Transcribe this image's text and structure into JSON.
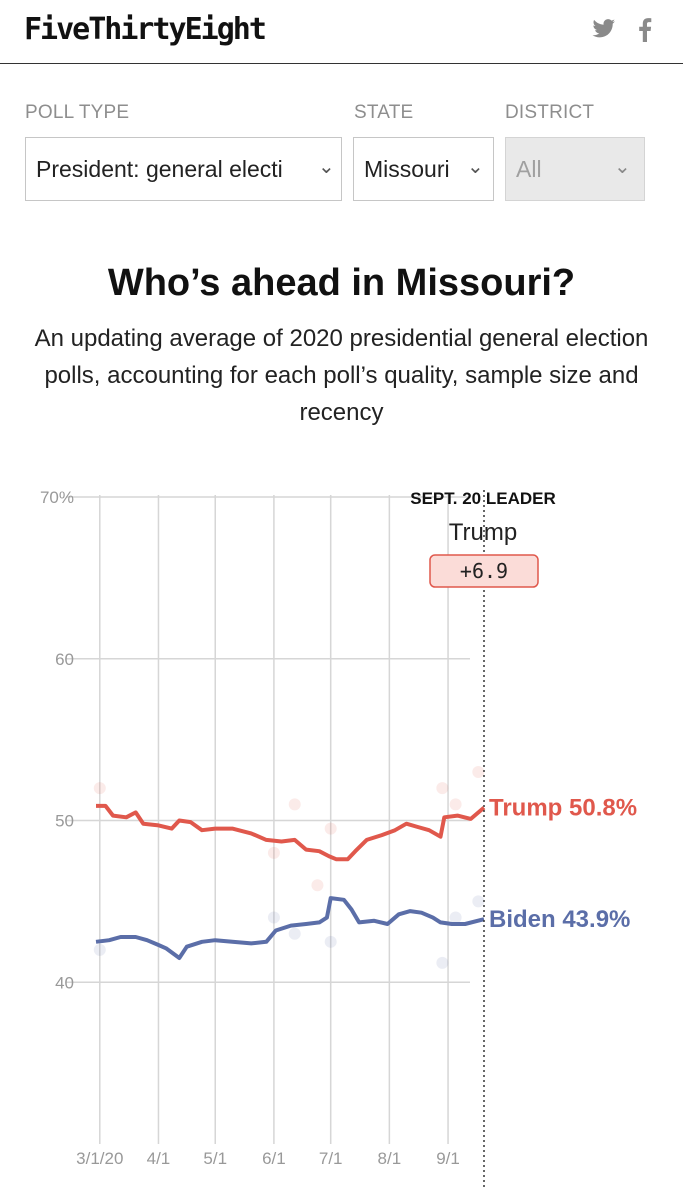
{
  "header": {
    "logo": "FiveThirtyEight",
    "twitter_icon": "twitter-icon",
    "facebook_icon": "facebook-icon"
  },
  "filters": {
    "poll_type": {
      "label": "POLL TYPE",
      "value": "President: general electi"
    },
    "state": {
      "label": "STATE",
      "value": "Missouri"
    },
    "district": {
      "label": "DISTRICT",
      "value": "All"
    }
  },
  "title": "Who’s ahead in Missouri?",
  "subtitle": "An updating average of 2020 presidential general election polls, accounting for each poll’s quality, sample size and recency",
  "leader": {
    "heading": "SEPT. 20 LEADER",
    "name": "Trump",
    "margin": "+6.9"
  },
  "colors": {
    "trump": "#e0584c",
    "biden": "#5b6ea8",
    "grid": "#d6d6d6"
  },
  "chart_data": {
    "type": "line",
    "ylim": [
      30,
      70
    ],
    "yticks": [
      "70%",
      "60",
      "50",
      "40"
    ],
    "xlim": [
      "2020-02-28",
      "2020-09-20"
    ],
    "xticks": [
      {
        "label": "3/1/20",
        "date": "2020-03-01"
      },
      {
        "label": "4/1",
        "date": "2020-04-01"
      },
      {
        "label": "5/1",
        "date": "2020-05-01"
      },
      {
        "label": "6/1",
        "date": "2020-06-01"
      },
      {
        "label": "7/1",
        "date": "2020-07-01"
      },
      {
        "label": "8/1",
        "date": "2020-08-01"
      },
      {
        "label": "9/1",
        "date": "2020-09-01"
      }
    ],
    "current_date": "2020-09-20",
    "series": [
      {
        "name": "Trump",
        "end_label": "Trump 50.8%",
        "points": [
          [
            "2020-02-28",
            50.9
          ],
          [
            "2020-03-04",
            50.9
          ],
          [
            "2020-03-08",
            50.3
          ],
          [
            "2020-03-15",
            50.2
          ],
          [
            "2020-03-20",
            50.5
          ],
          [
            "2020-03-24",
            49.8
          ],
          [
            "2020-04-01",
            49.7
          ],
          [
            "2020-04-08",
            49.5
          ],
          [
            "2020-04-12",
            50.0
          ],
          [
            "2020-04-18",
            49.9
          ],
          [
            "2020-04-24",
            49.4
          ],
          [
            "2020-05-01",
            49.5
          ],
          [
            "2020-05-10",
            49.5
          ],
          [
            "2020-05-20",
            49.2
          ],
          [
            "2020-05-28",
            48.8
          ],
          [
            "2020-06-05",
            48.7
          ],
          [
            "2020-06-12",
            48.8
          ],
          [
            "2020-06-18",
            48.2
          ],
          [
            "2020-06-25",
            48.1
          ],
          [
            "2020-06-30",
            47.8
          ],
          [
            "2020-07-04",
            47.6
          ],
          [
            "2020-07-10",
            47.6
          ],
          [
            "2020-07-14",
            48.1
          ],
          [
            "2020-07-20",
            48.8
          ],
          [
            "2020-07-28",
            49.1
          ],
          [
            "2020-08-04",
            49.4
          ],
          [
            "2020-08-10",
            49.8
          ],
          [
            "2020-08-16",
            49.6
          ],
          [
            "2020-08-22",
            49.4
          ],
          [
            "2020-08-28",
            49.0
          ],
          [
            "2020-08-30",
            50.2
          ],
          [
            "2020-09-06",
            50.3
          ],
          [
            "2020-09-13",
            50.1
          ],
          [
            "2020-09-20",
            50.8
          ]
        ]
      },
      {
        "name": "Biden",
        "end_label": "Biden 43.9%",
        "points": [
          [
            "2020-02-28",
            42.5
          ],
          [
            "2020-03-06",
            42.6
          ],
          [
            "2020-03-12",
            42.8
          ],
          [
            "2020-03-20",
            42.8
          ],
          [
            "2020-03-26",
            42.6
          ],
          [
            "2020-04-01",
            42.3
          ],
          [
            "2020-04-05",
            42.1
          ],
          [
            "2020-04-12",
            41.5
          ],
          [
            "2020-04-16",
            42.2
          ],
          [
            "2020-04-24",
            42.5
          ],
          [
            "2020-05-01",
            42.6
          ],
          [
            "2020-05-10",
            42.5
          ],
          [
            "2020-05-20",
            42.4
          ],
          [
            "2020-05-28",
            42.5
          ],
          [
            "2020-06-02",
            43.2
          ],
          [
            "2020-06-10",
            43.5
          ],
          [
            "2020-06-18",
            43.6
          ],
          [
            "2020-06-25",
            43.7
          ],
          [
            "2020-06-29",
            44.0
          ],
          [
            "2020-07-01",
            45.2
          ],
          [
            "2020-07-08",
            45.1
          ],
          [
            "2020-07-12",
            44.5
          ],
          [
            "2020-07-16",
            43.7
          ],
          [
            "2020-07-24",
            43.8
          ],
          [
            "2020-07-31",
            43.6
          ],
          [
            "2020-08-06",
            44.2
          ],
          [
            "2020-08-12",
            44.4
          ],
          [
            "2020-08-18",
            44.3
          ],
          [
            "2020-08-24",
            44.0
          ],
          [
            "2020-08-28",
            43.7
          ],
          [
            "2020-09-03",
            43.6
          ],
          [
            "2020-09-10",
            43.6
          ],
          [
            "2020-09-20",
            43.9
          ]
        ]
      }
    ],
    "polls": [
      {
        "date": "2020-03-01",
        "value": 52.0,
        "series": "Trump"
      },
      {
        "date": "2020-03-01",
        "value": 42.0,
        "series": "Biden"
      },
      {
        "date": "2020-06-01",
        "value": 48.0,
        "series": "Trump"
      },
      {
        "date": "2020-06-01",
        "value": 44.0,
        "series": "Biden"
      },
      {
        "date": "2020-06-12",
        "value": 51.0,
        "series": "Trump"
      },
      {
        "date": "2020-06-12",
        "value": 43.0,
        "series": "Biden"
      },
      {
        "date": "2020-06-24",
        "value": 46.0,
        "series": "Trump"
      },
      {
        "date": "2020-07-01",
        "value": 49.5,
        "series": "Trump"
      },
      {
        "date": "2020-07-01",
        "value": 42.5,
        "series": "Biden"
      },
      {
        "date": "2020-08-29",
        "value": 52.0,
        "series": "Trump"
      },
      {
        "date": "2020-08-29",
        "value": 41.2,
        "series": "Biden"
      },
      {
        "date": "2020-09-05",
        "value": 51.0,
        "series": "Trump"
      },
      {
        "date": "2020-09-05",
        "value": 44.0,
        "series": "Biden"
      },
      {
        "date": "2020-09-17",
        "value": 53.0,
        "series": "Trump"
      },
      {
        "date": "2020-09-17",
        "value": 45.0,
        "series": "Biden"
      }
    ]
  }
}
